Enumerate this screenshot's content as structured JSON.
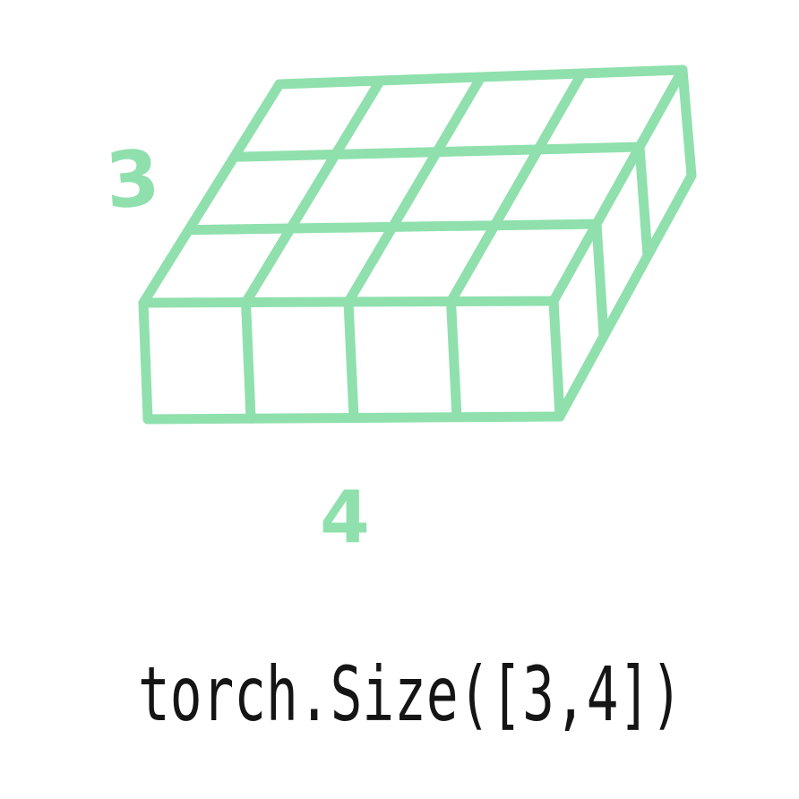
{
  "colors": {
    "grid": "#8fe0ad",
    "caption": "#151515",
    "background": "#ffffff"
  },
  "tensor": {
    "rows": 3,
    "cols": 4
  },
  "labels": {
    "rows_label": "3",
    "cols_label": "4"
  },
  "caption": "torch.Size([3,4])"
}
